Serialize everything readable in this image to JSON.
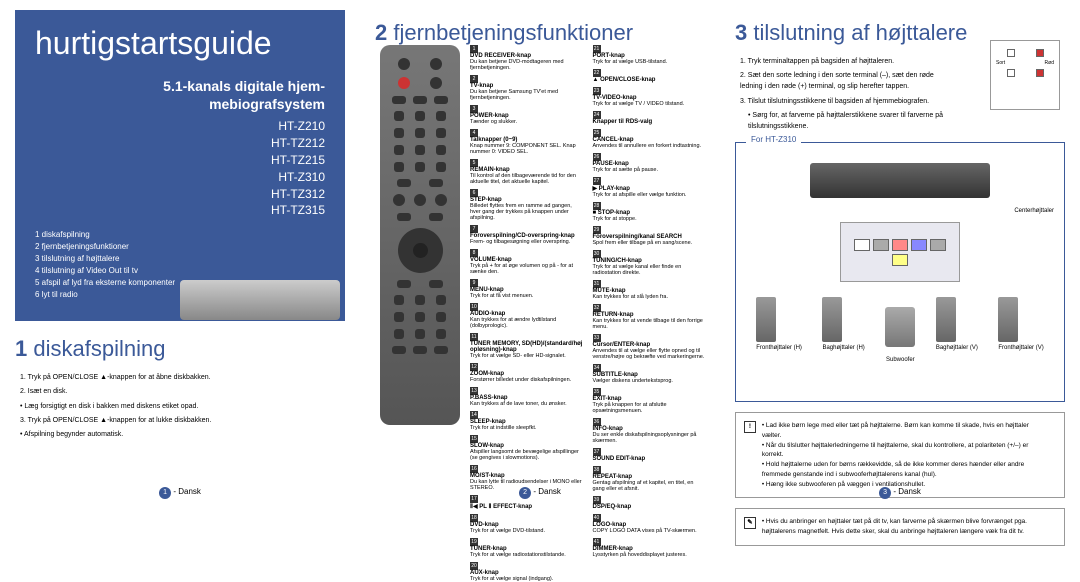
{
  "panel1": {
    "guideTitle": "hurtigstartsguide",
    "subtitle1": "5.1-kanals digitale hjem-",
    "subtitle2": "mebiografsystem",
    "models": [
      "HT-Z210",
      "HT-TZ212",
      "HT-TZ215",
      "HT-Z310",
      "HT-TZ312",
      "HT-TZ315"
    ],
    "toc": [
      "1 diskafspilning",
      "2 fjernbetjeningsfunktioner",
      "3 tilslutning af højttalere",
      "4 tilslutning af Video Out til tv",
      "5 afspil af lyd fra eksterne komponenter",
      "6 lyt til radio"
    ],
    "section": "diskafspilning",
    "sectionNum": "1",
    "steps": [
      "1. Tryk på OPEN/CLOSE ▲-knappen for at åbne diskbakken.",
      "2. Isæt en disk.",
      "• Læg forsigtigt en disk i bakken med diskens etiket opad.",
      "3. Tryk på OPEN/CLOSE ▲-knappen for at lukke diskbakken.",
      "• Afspilning begynder automatisk."
    ],
    "footer": "- Dansk"
  },
  "panel2": {
    "sectionNum": "2",
    "section": "fjernbetjeningsfunktioner",
    "functions": [
      {
        "n": "1",
        "t": "DVD RECEIVER-knap",
        "d": "Du kan betjene DVD-modtageren med fjernbetjeningen."
      },
      {
        "n": "2",
        "t": "TV-knap",
        "d": "Du kan betjene Samsung TV'et med fjernbetjeningen."
      },
      {
        "n": "3",
        "t": "POWER-knap",
        "d": "Tænder og slukker."
      },
      {
        "n": "4",
        "t": "Talknapper (0~9)",
        "d": "Knap nummer 9: COMPONENT SEL. Knap nummer 0: VIDEO SEL."
      },
      {
        "n": "5",
        "t": "REMAIN-knap",
        "d": "Til kontrol af den tilbageværende tid for den aktuelle titel, det aktuelle kapitel."
      },
      {
        "n": "6",
        "t": "STEP-knap",
        "d": "Billedet flyttes frem en ramme ad gangen, hver gang der trykkes på knappen under afspilning."
      },
      {
        "n": "7",
        "t": "Foroverspilning/CD-overspring-knap",
        "d": "Frem- og tilbagesøgning eller overspring."
      },
      {
        "n": "8",
        "t": "VOLUME-knap",
        "d": "Tryk på + for at øge volumen og på - for at sænke den."
      },
      {
        "n": "9",
        "t": "MENU-knap",
        "d": "Tryk for at få vist menuen."
      },
      {
        "n": "10",
        "t": "AUDIO-knap",
        "d": "Kan trykkes for at ændre lydtilstand (dolbyprologic)."
      },
      {
        "n": "11",
        "t": "TUNER MEMORY, SD(HD)/(standard/høj opløsning)-knap",
        "d": "Tryk for at vælge SD- eller HD-signalet."
      },
      {
        "n": "12",
        "t": "ZOOM-knap",
        "d": "Forstørrer billedet under diskafspilningen."
      },
      {
        "n": "13",
        "t": "P.BASS-knap",
        "d": "Kan trykkes af de lave toner, du ønsker."
      },
      {
        "n": "14",
        "t": "SLEEP-knap",
        "d": "Tryk for at indstille sleepfkt."
      },
      {
        "n": "15",
        "t": "SLOW-knap",
        "d": "Afspiller langsomt de bevægelige afspillinger (se gengives i slowmotions)."
      },
      {
        "n": "16",
        "t": "MO/ST-knap",
        "d": "Du kan lytte til radioudsendelser i MONO eller STEREO."
      },
      {
        "n": "17",
        "t": "Ⅱ◀ PL Ⅱ EFFECT-knap",
        "d": ""
      },
      {
        "n": "18",
        "t": "DVD-knap",
        "d": "Tryk for at vælge DVD-tilstand."
      },
      {
        "n": "19",
        "t": "TUNER-knap",
        "d": "Tryk for at vælge radiostationstilstande."
      },
      {
        "n": "20",
        "t": "AUX-knap",
        "d": "Tryk for at vælge signal (indgang)."
      },
      {
        "n": "21",
        "t": "PORT-knap",
        "d": "Tryk for at vælge USB-tilstand."
      },
      {
        "n": "22",
        "t": "▲ OPEN/CLOSE-knap",
        "d": ""
      },
      {
        "n": "23",
        "t": "TV-VIDEO-knap",
        "d": "Tryk for at vælge TV / VIDEO tilstand."
      },
      {
        "n": "24",
        "t": "Knapper til RDS-valg",
        "d": ""
      },
      {
        "n": "25",
        "t": "CANCEL-knap",
        "d": "Anvendes til annullere en forkert indtastning."
      },
      {
        "n": "26",
        "t": "PAUSE-knap",
        "d": "Tryk for at sætte på pause."
      },
      {
        "n": "27",
        "t": "▶ PLAY-knap",
        "d": "Tryk for at afspille eller vælge funktion."
      },
      {
        "n": "28",
        "t": "■ STOP-knap",
        "d": "Tryk for at stoppe."
      },
      {
        "n": "29",
        "t": "Foroverspilning/kanal SEARCH",
        "d": "Spol frem eller tilbage på en sang/scene."
      },
      {
        "n": "30",
        "t": "TUNING/CH-knap",
        "d": "Tryk for at vælge kanal eller finde en radiostation direkte."
      },
      {
        "n": "31",
        "t": "MUTE-knap",
        "d": "Kan trykkes for at slå lyden fra."
      },
      {
        "n": "32",
        "t": "RETURN-knap",
        "d": "Kan trykkes for at vende tilbage til den forrige menu."
      },
      {
        "n": "33",
        "t": "Cursor/ENTER-knap",
        "d": "Anvendes til at vælge eller flytte opned og til venstre/højre og bekræfte ved markeringerne."
      },
      {
        "n": "34",
        "t": "SUBTITLE-knap",
        "d": "Vælger diskens undertekstsprog."
      },
      {
        "n": "35",
        "t": "EXIT-knap",
        "d": "Tryk på knappen for at afslutte opsætningsmenuen."
      },
      {
        "n": "36",
        "t": "INFO-knap",
        "d": "Du ser enkle diskafspilningsoplysninger på skærmen."
      },
      {
        "n": "37",
        "t": "SOUND EDIT-knap",
        "d": ""
      },
      {
        "n": "38",
        "t": "REPEAT-knap",
        "d": "Gentag afspilning af et kapitel, en titel, en gang eller et afsnit."
      },
      {
        "n": "39",
        "t": "DSP/EQ-knap",
        "d": ""
      },
      {
        "n": "40",
        "t": "LOGO-knap",
        "d": "COPY LOGO DATA vises på TV-skærmen."
      },
      {
        "n": "41",
        "t": "DIMMER-knap",
        "d": "Lysstyrken på hoveddisplayet justeres."
      }
    ],
    "footer": "- Dansk"
  },
  "panel3": {
    "sectionNum": "3",
    "section": "tilslutning af højttalere",
    "steps": [
      "1. Tryk terminaltappen på bagsiden af højttaleren.",
      "2. Sæt den sorte ledning i den sorte terminal (–), sæt den røde ledning i den røde (+) terminal, og slip herefter tappen.",
      "3. Tilslut tilslutningsstikkene til bagsiden af hjemmebiografen."
    ],
    "note": "• Sørg for, at farverne på højttalerstikkene svarer til farverne på tilslutningsstikkene.",
    "diagramLabel": "For HT-Z310",
    "speakers": {
      "center": "Centerhøjttaler",
      "frontL": "Fronthøjttaler (V)",
      "frontR": "Fronthøjttaler (H)",
      "rearL": "Baghøjttaler (V)",
      "rearR": "Baghøjttaler (H)",
      "sub": "Subwoofer"
    },
    "termLabels": {
      "black": "Sort",
      "red": "Rød"
    },
    "ports": [
      "CENTER",
      "FRONT",
      "REAR",
      "SUB"
    ],
    "info1": [
      "• Lad ikke børn lege med eller tæt på højttalerne. Børn kan komme til skade, hvis en højttaler vælter.",
      "• Når du tilslutter højttalerledningerne til højttalerne, skal du kontrollere, at polariteten (+/–) er korrekt.",
      "• Hold højttalerne uden for børns rækkevidde, så de ikke kommer deres hænder eller andre fremmede genstande ind i subwooferhøjttalerens kanal (hul).",
      "• Hæng ikke subwooferen på væggen i ventilationshullet."
    ],
    "info2": "• Hvis du anbringer en højttaler tæt på dit tv, kan farverne på skærmen blive forvrænget pga. højttalerens magnetfelt. Hvis dette sker, skal du anbringe højttaleren længere væk fra dit tv.",
    "footer": "- Dansk"
  }
}
